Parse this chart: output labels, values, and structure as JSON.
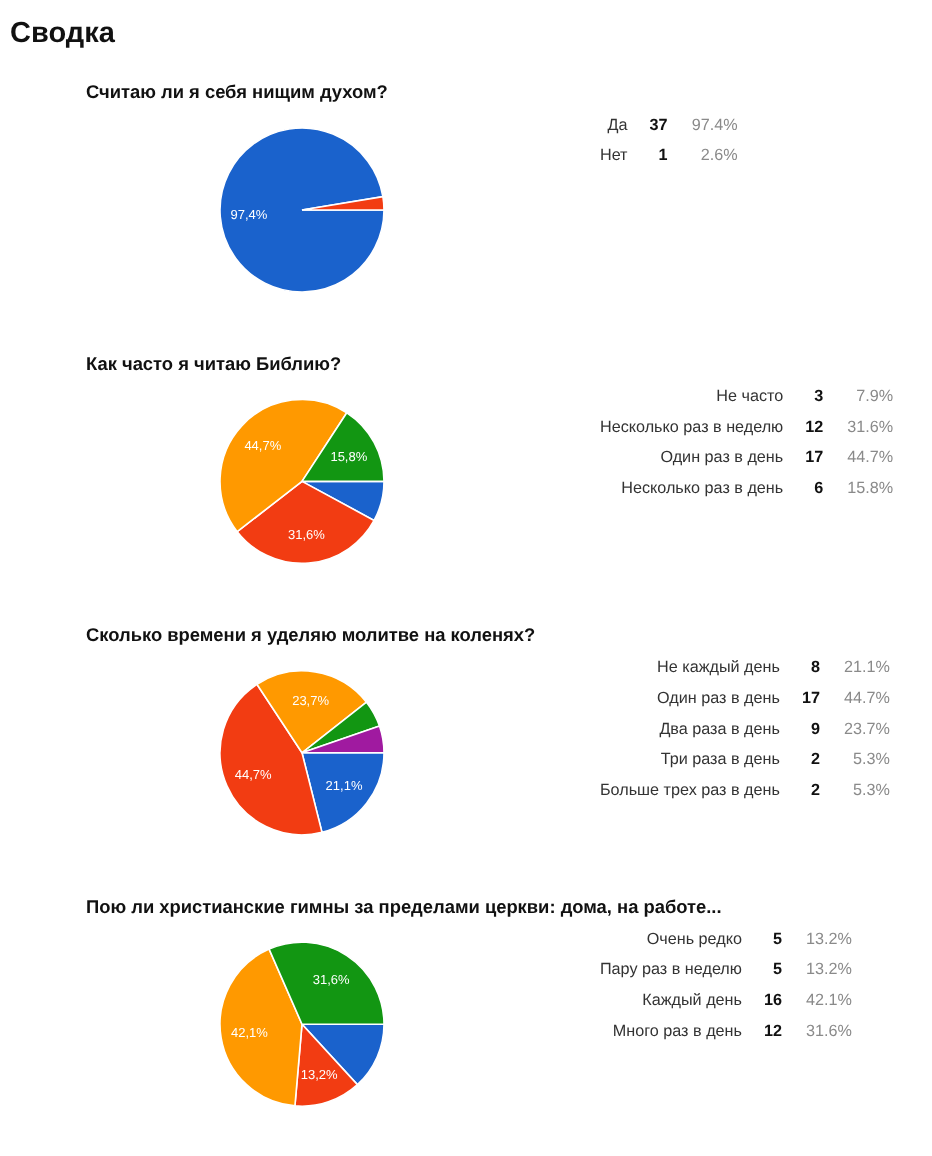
{
  "chart_data": [
    {
      "type": "pie",
      "title": "Сводка",
      "subtitle": "Считаю ли я себя нищим духом?",
      "categories": [
        null,
        null
      ],
      "values": [
        97.4,
        2.6
      ],
      "colors": [
        "#1a62cc",
        "#f23c12"
      ],
      "value_labels": [
        "97,4%",
        null
      ]
    },
    {
      "type": "other",
      "annotations": [
        "Да",
        "37",
        "97.4%",
        "Нет",
        "1",
        "2.6%"
      ]
    },
    {
      "type": "pie",
      "title": "Как часто я читаю Библию?",
      "categories": [
        null,
        null,
        null,
        null
      ],
      "values": [
        7.9,
        31.6,
        44.7,
        15.8
      ],
      "colors": [
        "#1a62cc",
        "#f23c12",
        "#ff9900",
        "#129612"
      ],
      "value_labels": [
        null,
        "31,6%",
        "44,7%",
        "15,8%"
      ]
    },
    {
      "type": "other",
      "annotations": [
        "Не часто",
        "3",
        "7.9%",
        "Несколько раз в неделю",
        "12",
        "31.6%",
        "Один раз в день",
        "17",
        "44.7%",
        "Несколько раз в день",
        "6",
        "15.8%"
      ]
    },
    {
      "type": "pie",
      "title": "Сколько времени я уделяю молитве на коленях?",
      "categories": [
        null,
        null,
        null,
        null,
        null
      ],
      "values": [
        21.1,
        44.7,
        23.7,
        5.3,
        5.3
      ],
      "colors": [
        "#1a62cc",
        "#f23c12",
        "#ff9900",
        "#129612",
        "#a01aa0"
      ],
      "value_labels": [
        "21,1%",
        "44,7%",
        "23,7%",
        null,
        null
      ]
    },
    {
      "type": "other",
      "annotations": [
        "Не каждый день",
        "8",
        "21.1%",
        "Один раз в день",
        "17",
        "44.7%",
        "Два раза в день",
        "9",
        "23.7%",
        "Три раза в день",
        "2",
        "5.3%",
        "Больше трех раз в день",
        "2",
        "5.3%"
      ]
    },
    {
      "type": "pie",
      "title": "Пою ли христианские гимны за пределами церкви: дома, на работе...",
      "categories": [
        null,
        null,
        null,
        null
      ],
      "values": [
        13.2,
        13.2,
        42.1,
        31.6
      ],
      "colors": [
        "#1a62cc",
        "#f23c12",
        "#ff9900",
        "#129612"
      ],
      "value_labels": [
        null,
        "13,2%",
        "42,1%",
        "31,6%"
      ]
    },
    {
      "type": "other",
      "annotations": [
        "Очень редко",
        "5",
        "13.2%",
        "Пару раз в неделю",
        "5",
        "13.2%",
        "Каждый день",
        "16",
        "42.1%",
        "Много раз в день",
        "12",
        "31.6%"
      ]
    }
  ]
}
